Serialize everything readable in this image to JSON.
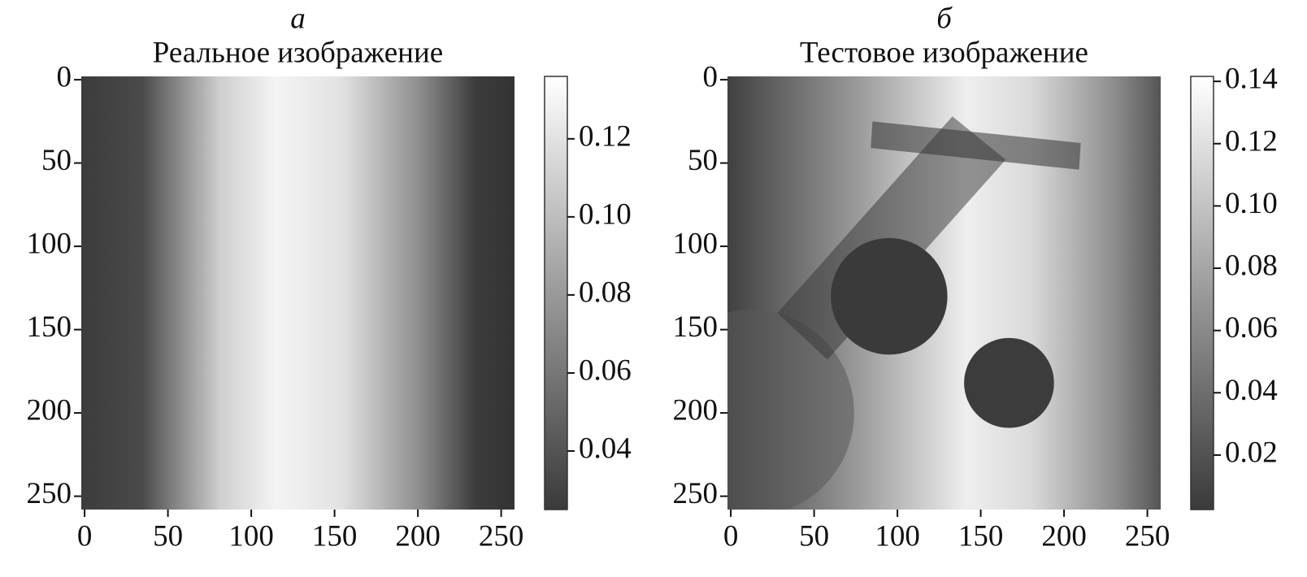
{
  "chart_data": [
    {
      "type": "image",
      "label": "а",
      "title": "Реальное изображение",
      "xlim": [
        -2,
        258
      ],
      "xticks": [
        0,
        50,
        100,
        150,
        200,
        250
      ],
      "ylim": [
        258,
        -2
      ],
      "yticks": [
        0,
        50,
        100,
        150,
        200,
        250
      ],
      "colorbar": {
        "clim": [
          0.025,
          0.136
        ],
        "ticks": [
          0.04,
          0.06,
          0.08,
          {
            "value": 0.1,
            "label": "0.10"
          },
          0.12
        ]
      }
    },
    {
      "type": "image",
      "label": "б",
      "title": "Тестовое изображение",
      "xlim": [
        -2,
        258
      ],
      "xticks": [
        0,
        50,
        100,
        150,
        200,
        250
      ],
      "ylim": [
        258,
        -2
      ],
      "yticks": [
        0,
        50,
        100,
        150,
        200,
        250
      ],
      "colorbar": {
        "clim": [
          0.0025,
          0.1416
        ],
        "ticks": [
          0.02,
          0.04,
          0.06,
          0.08,
          {
            "value": 0.1,
            "label": "0.10"
          },
          0.12,
          0.14
        ]
      }
    }
  ]
}
